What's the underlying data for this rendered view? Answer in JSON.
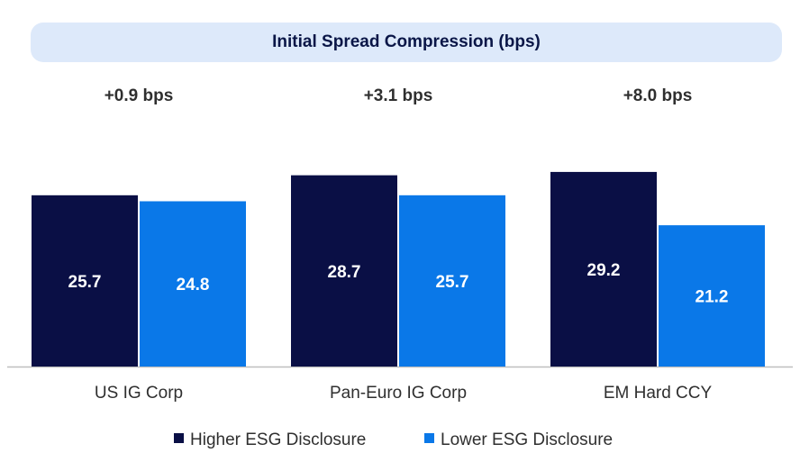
{
  "chart_data": {
    "type": "bar",
    "title": "Initial Spread Compression (bps)",
    "categories": [
      "US IG Corp",
      "Pan-Euro IG Corp",
      "EM Hard CCY"
    ],
    "series": [
      {
        "name": "Higher ESG Disclosure",
        "values": [
          25.7,
          28.7,
          29.2
        ],
        "color": "#0a0f45"
      },
      {
        "name": "Lower ESG Disclosure",
        "values": [
          24.8,
          25.7,
          21.2
        ],
        "color": "#0a78e8"
      }
    ],
    "value_labels": [
      [
        "25.7",
        "28.7",
        "29.2"
      ],
      [
        "24.8",
        "25.7",
        "21.2"
      ]
    ],
    "annotations": [
      "+0.9 bps",
      "+3.1 bps",
      "+8.0 bps"
    ],
    "ylim": [
      0,
      35
    ],
    "legend_position": "bottom",
    "grid": false,
    "xlabel": "",
    "ylabel": ""
  }
}
